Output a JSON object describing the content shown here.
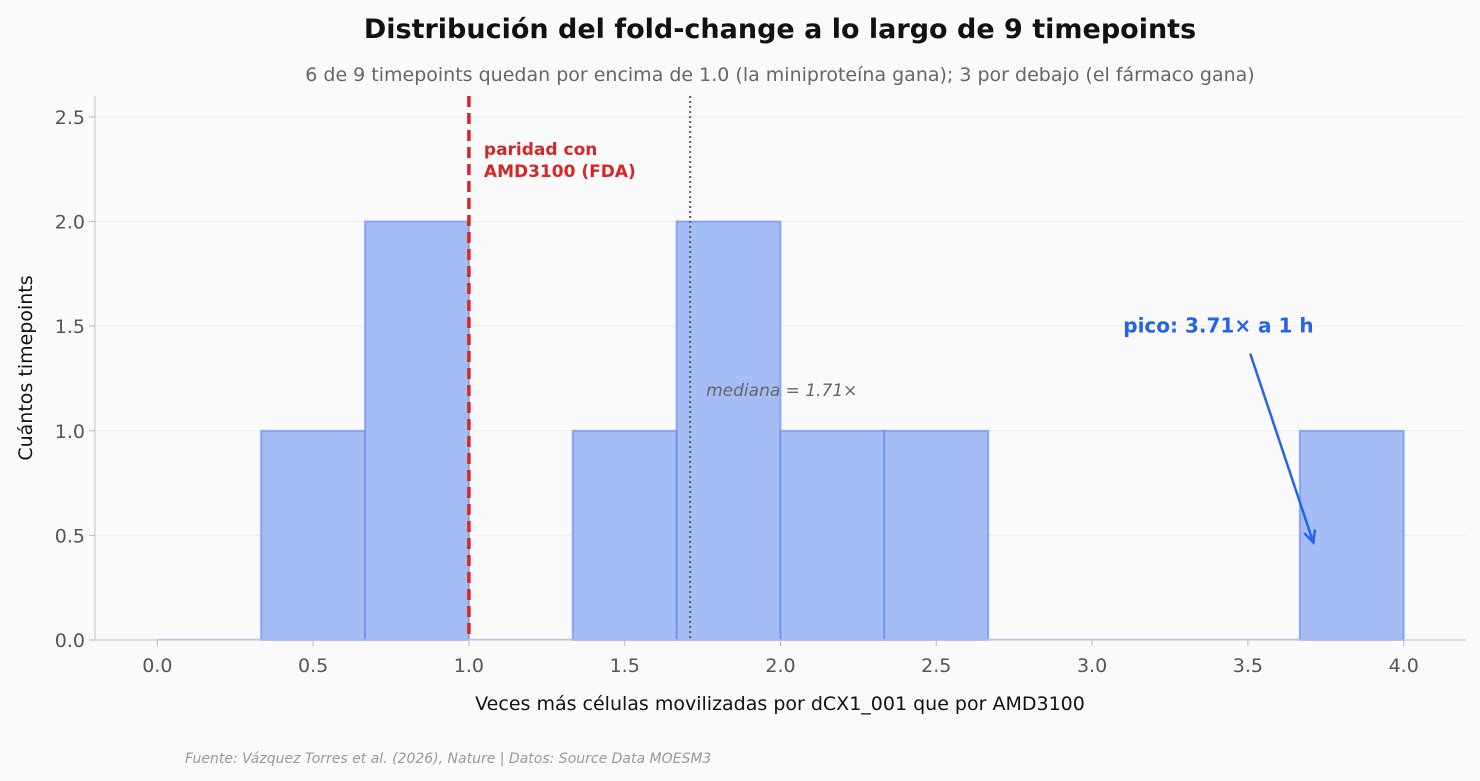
{
  "chart_data": {
    "type": "bar",
    "subtype": "histogram",
    "title": "Distribución del fold-change a lo largo de 9 timepoints",
    "subtitle": "6 de 9 timepoints quedan por encima de 1.0 (la miniproteína gana); 3 por debajo (el fármaco gana)",
    "xlabel": "Veces más células movilizadas por dCX1_001 que por AMD3100",
    "ylabel": "Cuántos timepoints",
    "xlim": [
      -0.2,
      4.2
    ],
    "ylim": [
      0,
      2.6
    ],
    "xticks": [
      0.0,
      0.5,
      1.0,
      1.5,
      2.0,
      2.5,
      3.0,
      3.5,
      4.0
    ],
    "xtick_labels": [
      "0.0",
      "0.5",
      "1.0",
      "1.5",
      "2.0",
      "2.5",
      "3.0",
      "3.5",
      "4.0"
    ],
    "yticks": [
      0.0,
      0.5,
      1.0,
      1.5,
      2.0,
      2.5
    ],
    "ytick_labels": [
      "0.0",
      "0.5",
      "1.0",
      "1.5",
      "2.0",
      "2.5"
    ],
    "bins": [
      {
        "x0": 0.0,
        "x1": 0.3333,
        "count": 0
      },
      {
        "x0": 0.3333,
        "x1": 0.6667,
        "count": 1
      },
      {
        "x0": 0.6667,
        "x1": 1.0,
        "count": 2
      },
      {
        "x0": 1.0,
        "x1": 1.3333,
        "count": 0
      },
      {
        "x0": 1.3333,
        "x1": 1.6667,
        "count": 1
      },
      {
        "x0": 1.6667,
        "x1": 2.0,
        "count": 2
      },
      {
        "x0": 2.0,
        "x1": 2.3333,
        "count": 1
      },
      {
        "x0": 2.3333,
        "x1": 2.6667,
        "count": 1
      },
      {
        "x0": 2.6667,
        "x1": 3.0,
        "count": 0
      },
      {
        "x0": 3.0,
        "x1": 3.3333,
        "count": 0
      },
      {
        "x0": 3.3333,
        "x1": 3.6667,
        "count": 0
      },
      {
        "x0": 3.6667,
        "x1": 4.0,
        "count": 1
      }
    ],
    "reference_lines": [
      {
        "name": "parity",
        "x": 1.0,
        "style": "dashed",
        "color": "#d62728",
        "label": "paridad con AMD3100 (FDA)",
        "label_lines": [
          "paridad con",
          "AMD3100 (FDA)"
        ]
      },
      {
        "name": "median",
        "x": 1.71,
        "style": "dotted",
        "color": "#666666",
        "label": "mediana = 1.71×"
      }
    ],
    "annotations": [
      {
        "name": "peak",
        "text": "pico: 3.71× a 1 h",
        "x": 3.71,
        "y": 0.5,
        "text_x": 3.1,
        "text_y": 1.45
      }
    ],
    "grid": "horizontal",
    "source": "Fuente: Vázquez Torres et al. (2026), Nature | Datos: Source Data MOESM3"
  },
  "colors": {
    "background": "#fafafa",
    "bar_fill": "#a4bdf5",
    "bar_edge": "#5b86ef",
    "parity_line": "#d62728",
    "median_line": "#666666",
    "peak_accent": "#2563eb",
    "grid": "#ececec",
    "axis": "#cccccc"
  }
}
